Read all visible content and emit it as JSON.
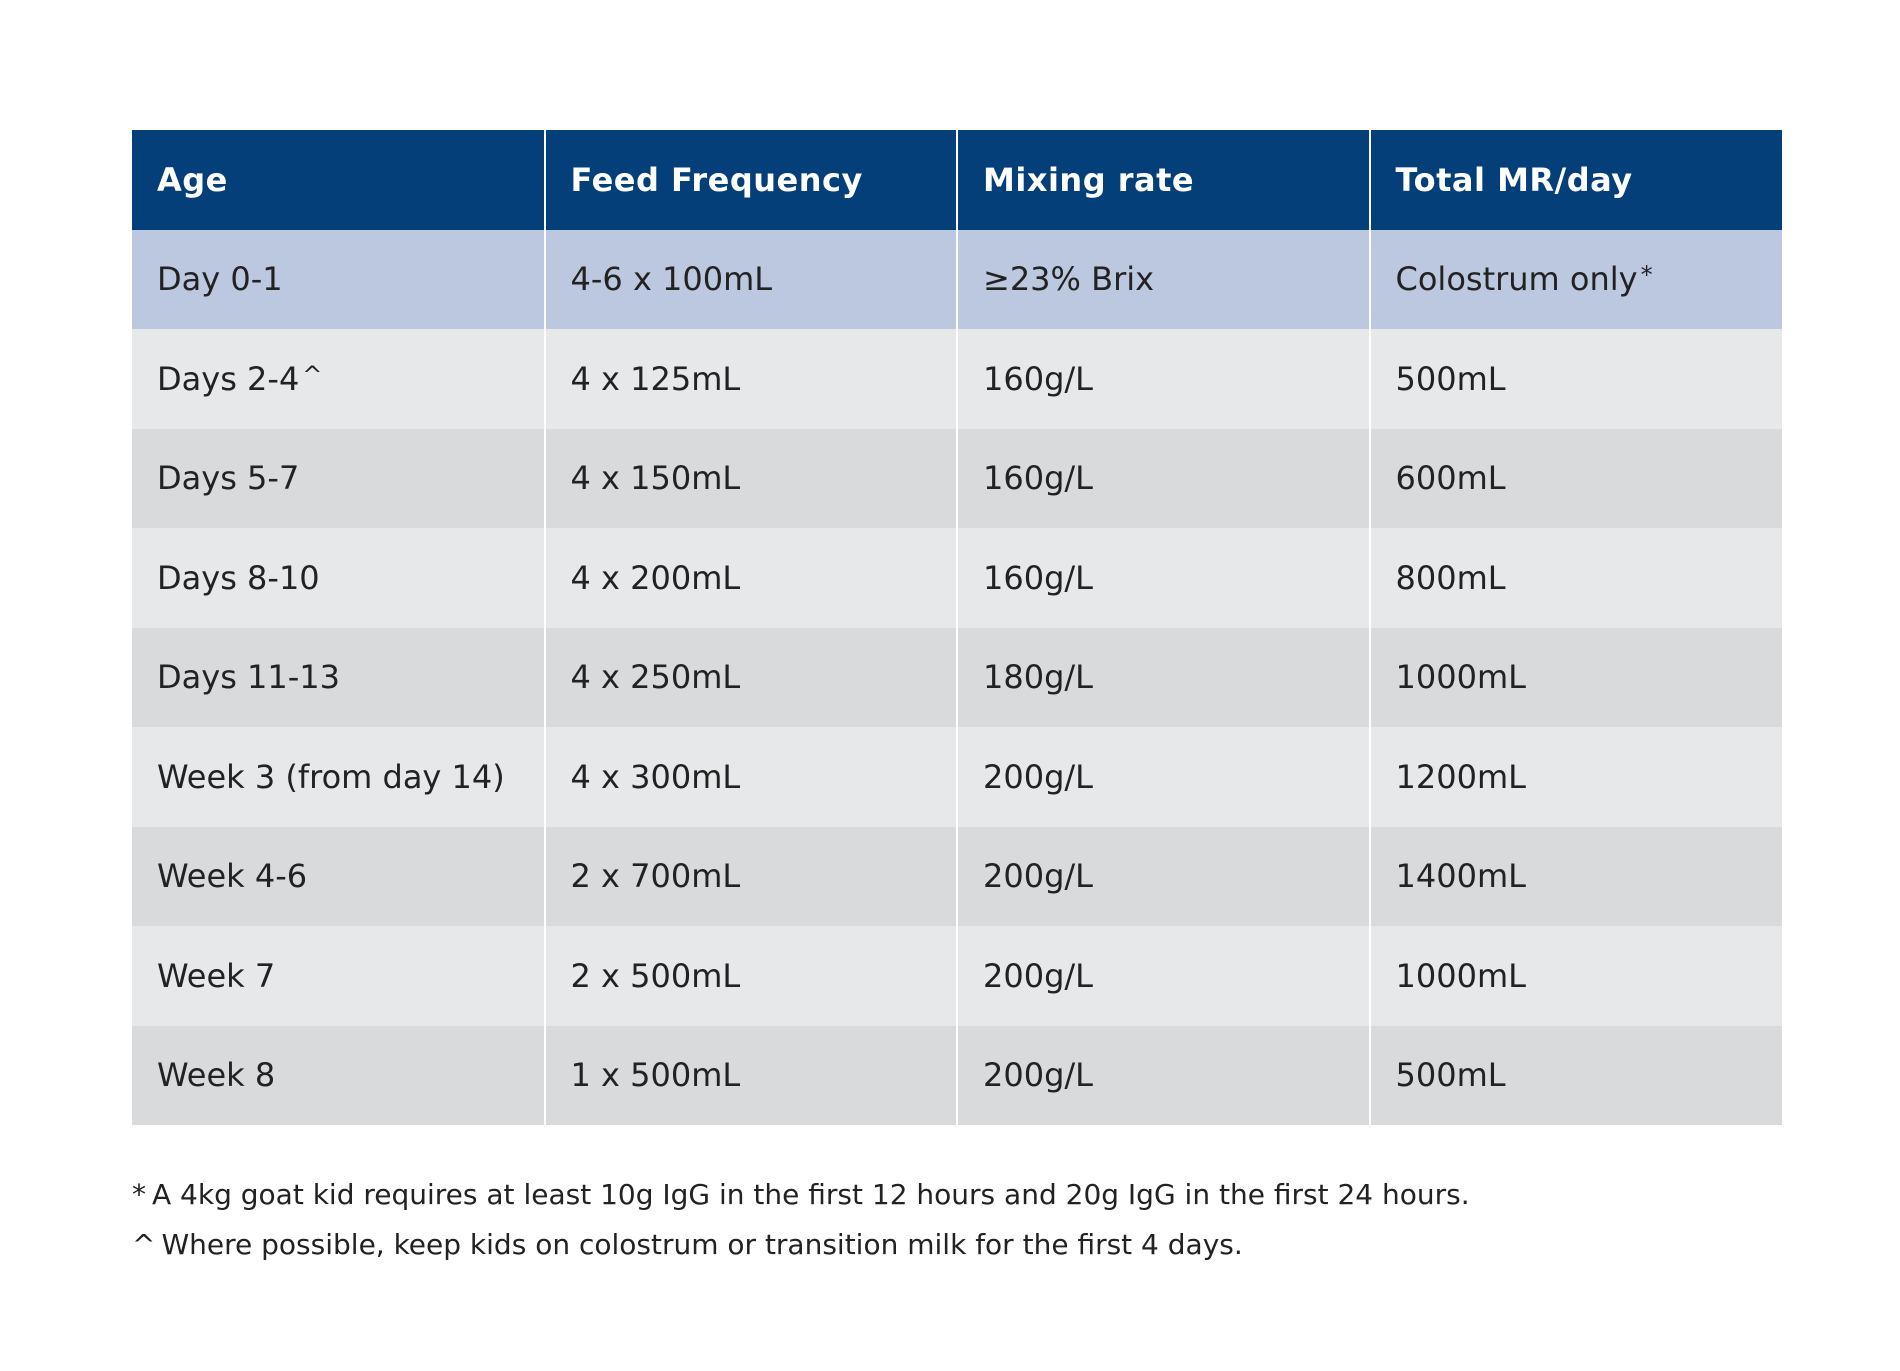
{
  "table": {
    "headers": [
      "Age",
      "Feed Frequency",
      "Mixing rate",
      "Total MR/day"
    ],
    "rows": [
      {
        "age": "Day 0-1",
        "age_mark": "",
        "feed_frequency": "4-6 x 100mL",
        "mixing_rate": "≥23% Brix",
        "total": "Colostrum only",
        "total_mark": "*"
      },
      {
        "age": "Days 2-4",
        "age_mark": "^",
        "feed_frequency": "4 x 125mL",
        "mixing_rate": "160g/L",
        "total": "500mL",
        "total_mark": ""
      },
      {
        "age": "Days 5-7",
        "age_mark": "",
        "feed_frequency": "4 x 150mL",
        "mixing_rate": "160g/L",
        "total": "600mL",
        "total_mark": ""
      },
      {
        "age": "Days 8-10",
        "age_mark": "",
        "feed_frequency": "4 x 200mL",
        "mixing_rate": "160g/L",
        "total": "800mL",
        "total_mark": ""
      },
      {
        "age": "Days 11-13",
        "age_mark": "",
        "feed_frequency": "4 x 250mL",
        "mixing_rate": "180g/L",
        "total": "1000mL",
        "total_mark": ""
      },
      {
        "age": "Week 3 (from day 14)",
        "age_mark": "",
        "feed_frequency": "4 x 300mL",
        "mixing_rate": "200g/L",
        "total": "1200mL",
        "total_mark": ""
      },
      {
        "age": "Week 4-6",
        "age_mark": "",
        "feed_frequency": "2 x 700mL",
        "mixing_rate": "200g/L",
        "total": "1400mL",
        "total_mark": ""
      },
      {
        "age": "Week 7",
        "age_mark": "",
        "feed_frequency": "2 x 500mL",
        "mixing_rate": "200g/L",
        "total": "1000mL",
        "total_mark": ""
      },
      {
        "age": "Week 8",
        "age_mark": "",
        "feed_frequency": "1 x 500mL",
        "mixing_rate": "200g/L",
        "total": "500mL",
        "total_mark": ""
      }
    ]
  },
  "footnotes": [
    {
      "mark": "*",
      "text": "A 4kg goat kid requires at least 10g IgG in the first 12 hours and 20g IgG in the first 24 hours."
    },
    {
      "mark": "^",
      "text": "Where possible, keep kids on colostrum or transition milk for the first 4 days."
    }
  ],
  "colors": {
    "header_background": "#043f79",
    "header_text": "#ffffff",
    "highlight_row": "#bcc8df",
    "row_light": "#e7e8ea",
    "row_dark": "#d9dadc",
    "body_text": "#222222"
  }
}
